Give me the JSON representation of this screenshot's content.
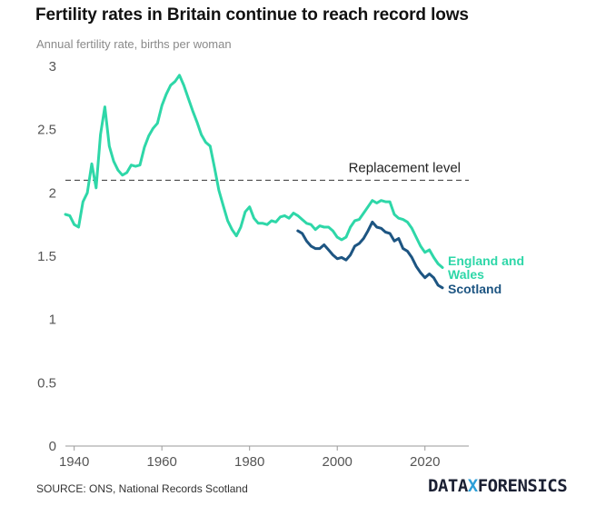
{
  "header": {
    "title": "Fertility rates in Britain continue to reach record lows",
    "subtitle": "Annual fertility rate, births per woman"
  },
  "footer": {
    "source": "SOURCE: ONS, National Records Scotland",
    "logo_left": "DATA",
    "logo_x": "X",
    "logo_right": "FORENSICS"
  },
  "colors": {
    "england_wales": "#2ed7a8",
    "scotland": "#1d5582",
    "reference": "#333333",
    "axis": "#9a9a9a",
    "logo_accent": "#2e9fd8"
  },
  "chart_data": {
    "type": "line",
    "title": "Fertility rates in Britain continue to reach record lows",
    "ylabel": "Annual fertility rate, births per woman",
    "xlabel": "",
    "xlim": [
      1938,
      2030
    ],
    "ylim": [
      0,
      3
    ],
    "xticks": [
      1940,
      1960,
      1980,
      2000,
      2020
    ],
    "yticks": [
      0,
      0.5,
      1,
      1.5,
      2,
      2.5,
      3
    ],
    "ytick_labels": [
      "0",
      "0.5",
      "1",
      "1.5",
      "2",
      "2.5",
      "3"
    ],
    "grid": false,
    "reference_line": {
      "label": "Replacement level",
      "value": 2.1
    },
    "series": [
      {
        "name": "England and Wales",
        "label_lines": [
          "England and",
          "Wales"
        ],
        "x": [
          1938,
          1939,
          1940,
          1941,
          1942,
          1943,
          1944,
          1945,
          1946,
          1947,
          1948,
          1949,
          1950,
          1951,
          1952,
          1953,
          1954,
          1955,
          1956,
          1957,
          1958,
          1959,
          1960,
          1961,
          1962,
          1963,
          1964,
          1965,
          1966,
          1967,
          1968,
          1969,
          1970,
          1971,
          1972,
          1973,
          1974,
          1975,
          1976,
          1977,
          1978,
          1979,
          1980,
          1981,
          1982,
          1983,
          1984,
          1985,
          1986,
          1987,
          1988,
          1989,
          1990,
          1991,
          1992,
          1993,
          1994,
          1995,
          1996,
          1997,
          1998,
          1999,
          2000,
          2001,
          2002,
          2003,
          2004,
          2005,
          2006,
          2007,
          2008,
          2009,
          2010,
          2011,
          2012,
          2013,
          2014,
          2015,
          2016,
          2017,
          2018,
          2019,
          2020,
          2021,
          2022,
          2023,
          2024
        ],
        "values": [
          1.83,
          1.82,
          1.75,
          1.73,
          1.93,
          2.0,
          2.23,
          2.04,
          2.46,
          2.68,
          2.37,
          2.25,
          2.18,
          2.14,
          2.16,
          2.22,
          2.21,
          2.22,
          2.36,
          2.45,
          2.51,
          2.55,
          2.69,
          2.78,
          2.85,
          2.88,
          2.93,
          2.85,
          2.75,
          2.65,
          2.56,
          2.46,
          2.4,
          2.37,
          2.2,
          2.02,
          1.9,
          1.78,
          1.71,
          1.66,
          1.73,
          1.85,
          1.89,
          1.8,
          1.76,
          1.76,
          1.75,
          1.78,
          1.77,
          1.81,
          1.82,
          1.8,
          1.84,
          1.82,
          1.79,
          1.76,
          1.75,
          1.71,
          1.74,
          1.73,
          1.73,
          1.7,
          1.65,
          1.63,
          1.65,
          1.73,
          1.78,
          1.79,
          1.84,
          1.89,
          1.94,
          1.92,
          1.94,
          1.93,
          1.93,
          1.83,
          1.8,
          1.79,
          1.77,
          1.72,
          1.65,
          1.58,
          1.53,
          1.55,
          1.49,
          1.44,
          1.41
        ]
      },
      {
        "name": "Scotland",
        "label_lines": [
          "Scotland"
        ],
        "x": [
          1991,
          1992,
          1993,
          1994,
          1995,
          1996,
          1997,
          1998,
          1999,
          2000,
          2001,
          2002,
          2003,
          2004,
          2005,
          2006,
          2007,
          2008,
          2009,
          2010,
          2011,
          2012,
          2013,
          2014,
          2015,
          2016,
          2017,
          2018,
          2019,
          2020,
          2021,
          2022,
          2023,
          2024
        ],
        "values": [
          1.7,
          1.68,
          1.62,
          1.58,
          1.56,
          1.56,
          1.59,
          1.55,
          1.51,
          1.48,
          1.49,
          1.47,
          1.51,
          1.58,
          1.6,
          1.64,
          1.7,
          1.77,
          1.73,
          1.72,
          1.69,
          1.68,
          1.62,
          1.64,
          1.56,
          1.54,
          1.49,
          1.42,
          1.37,
          1.33,
          1.36,
          1.33,
          1.27,
          1.25
        ]
      }
    ]
  }
}
